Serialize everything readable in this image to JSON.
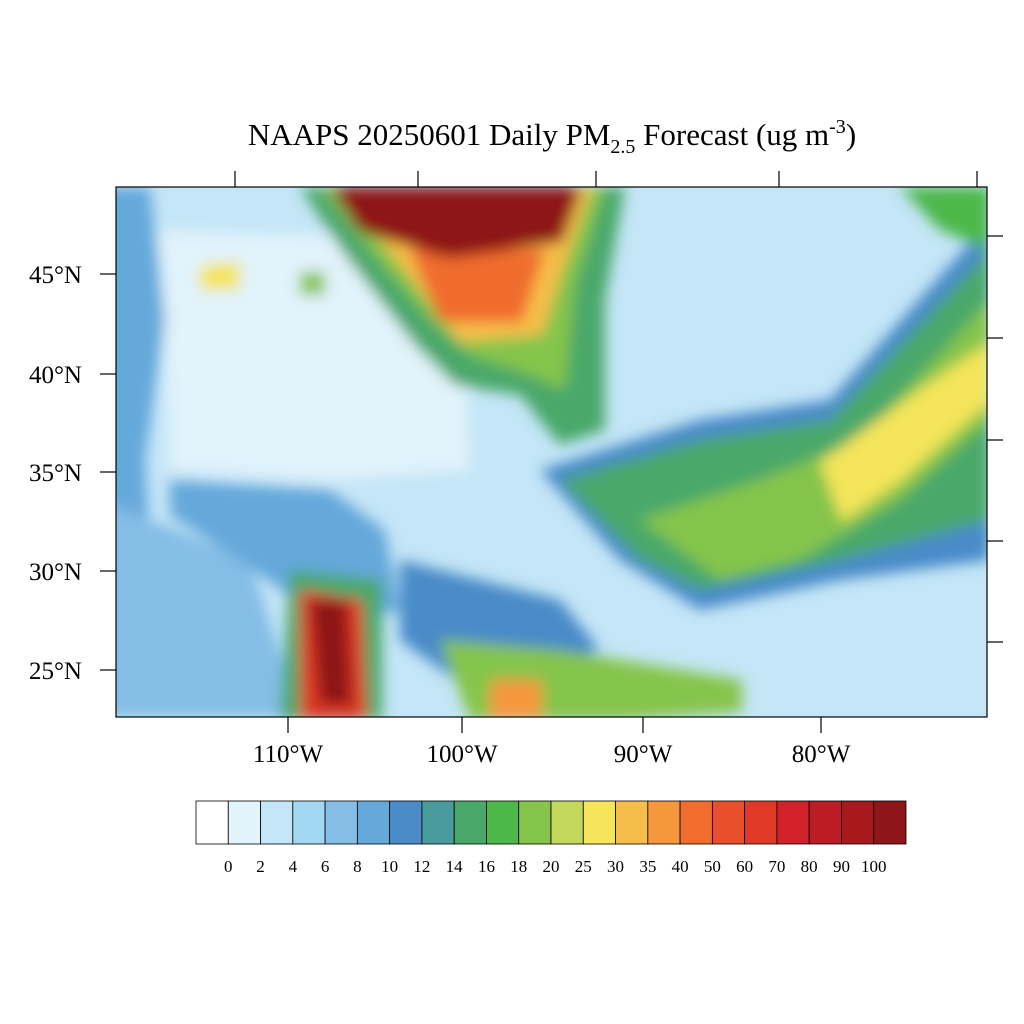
{
  "map": {
    "title": {
      "text": "NAAPS 20250601 Daily PM",
      "subscript": "2.5",
      "middle": " Forecast (ug m",
      "superscript": "-3",
      "end": ")"
    },
    "lat_labels": [
      "45°N",
      "40°N",
      "35°N",
      "30°N",
      "25°N"
    ],
    "lon_labels": [
      "110°W",
      "100°W",
      "90°W",
      "80°W"
    ],
    "colorbar": {
      "labels": [
        0,
        2,
        4,
        6,
        8,
        10,
        12,
        14,
        16,
        18,
        20,
        25,
        30,
        35,
        40,
        50,
        60,
        70,
        80,
        90,
        100
      ],
      "colors": [
        "#ffffff",
        "#e1f3fb",
        "#c4e6f7",
        "#a3d8f3",
        "#84bde6",
        "#65a8da",
        "#4a8bc8",
        "#4a9c9c",
        "#48a86a",
        "#4cb84a",
        "#85c54c",
        "#c3d85a",
        "#f4e55a",
        "#f7bd4a",
        "#f5973c",
        "#f06c2f",
        "#e8502c",
        "#de3a26",
        "#d22229",
        "#bc1c23",
        "#a8191e",
        "#8e1519"
      ]
    }
  }
}
